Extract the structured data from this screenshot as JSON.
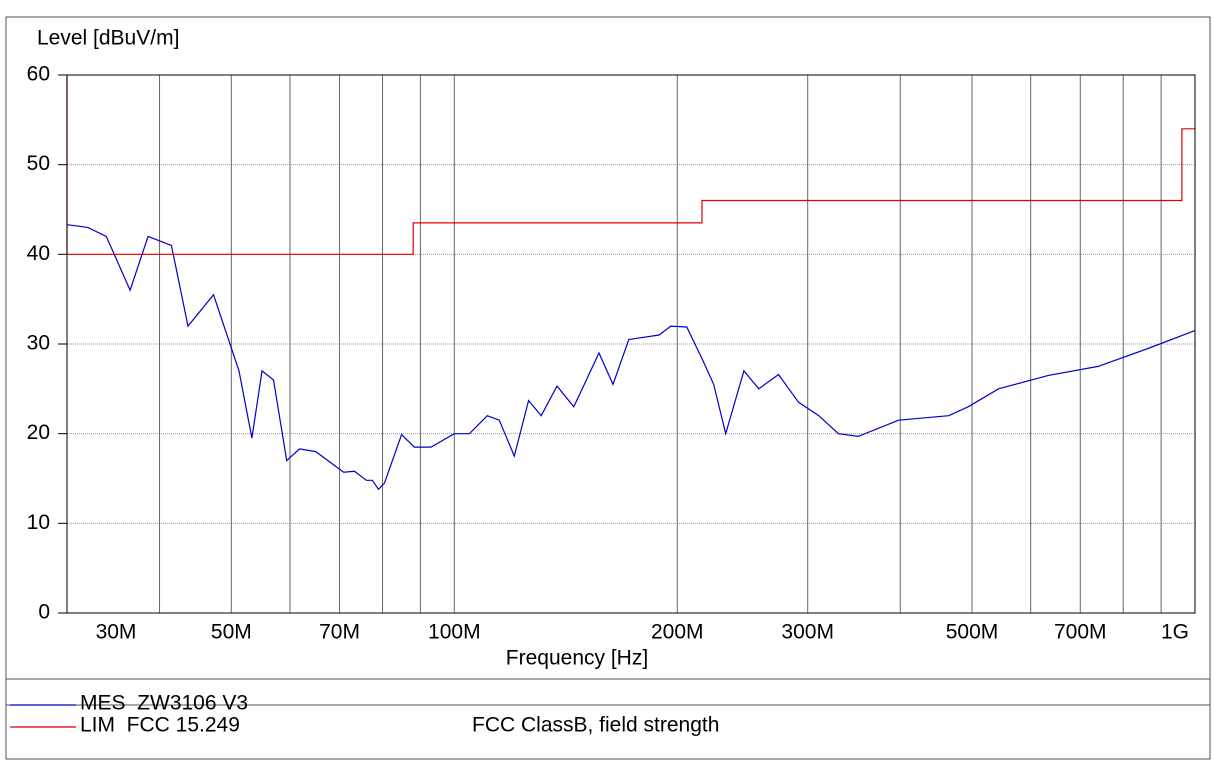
{
  "chart_data": {
    "type": "line",
    "y_label": "Level [dBuV/m]",
    "x_label": "Frequency [Hz]",
    "xscale": "log",
    "xlim": [
      30000000,
      1000000000
    ],
    "ylim": [
      0,
      60
    ],
    "yticks": [
      0,
      10,
      20,
      30,
      40,
      50,
      60
    ],
    "xticks": [
      {
        "value": 30000000,
        "label": "30M"
      },
      {
        "value": 50000000,
        "label": "50M"
      },
      {
        "value": 70000000,
        "label": "70M"
      },
      {
        "value": 100000000,
        "label": "100M"
      },
      {
        "value": 200000000,
        "label": "200M"
      },
      {
        "value": 300000000,
        "label": "300M"
      },
      {
        "value": 500000000,
        "label": "500M"
      },
      {
        "value": 700000000,
        "label": "700M"
      },
      {
        "value": 1000000000,
        "label": "1G"
      }
    ],
    "x_minor_ticks": [
      40000000,
      60000000,
      80000000,
      90000000,
      400000000,
      600000000,
      800000000,
      900000000
    ],
    "grid": true,
    "series": [
      {
        "name": "MES  ZW3106 V3",
        "color": "#0000cc",
        "x": [
          30000000,
          32000000,
          33900000,
          36500000,
          38600000,
          41500000,
          43700000,
          47300000,
          51200000,
          53300000,
          55000000,
          57000000,
          59400000,
          61800000,
          65000000,
          70900000,
          73300000,
          76100000,
          77500000,
          79000000,
          80500000,
          84900000,
          88300000,
          93000000,
          100000000,
          104800000,
          110800000,
          115000000,
          120500000,
          126000000,
          131000000,
          137600000,
          145000000,
          156800000,
          163800000,
          172000000,
          189000000,
          196000000,
          206000000,
          217000000,
          224000000,
          232500000,
          246000000,
          257700000,
          274000000,
          291600000,
          310500000,
          330000000,
          351000000,
          398000000,
          465000000,
          494000000,
          543000000,
          634000000,
          740000000,
          864000000,
          1000000000
        ],
        "values": [
          43.3,
          43,
          42,
          36,
          42,
          41,
          32,
          35.5,
          27,
          19.5,
          27,
          26,
          17,
          18.3,
          18,
          15.7,
          15.8,
          14.8,
          14.8,
          13.8,
          14.5,
          19.9,
          18.5,
          18.5,
          20,
          20,
          22,
          21.5,
          17.5,
          23.7,
          22,
          25.3,
          23,
          29,
          25.5,
          30.5,
          31,
          32,
          31.9,
          28,
          25.5,
          20,
          27,
          25,
          26.6,
          23.5,
          22,
          20,
          19.7,
          21.5,
          22,
          23,
          25,
          26.5,
          27.5,
          29.5,
          31.5
        ]
      },
      {
        "name": "LIM  FCC 15.249",
        "description": "FCC ClassB, field strength",
        "color": "#dd0000",
        "x": [
          30000000,
          30000000,
          88000000,
          88000000,
          216000000,
          216000000,
          960000000,
          960000000,
          1000000000
        ],
        "values": [
          60,
          40,
          40,
          43.5,
          43.5,
          46,
          46,
          54,
          54
        ]
      }
    ]
  }
}
